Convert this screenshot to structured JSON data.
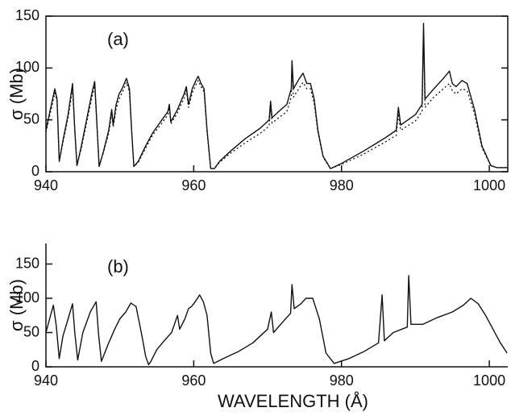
{
  "chart_data": [
    {
      "type": "line",
      "panel_label": "(a)",
      "ylabel": "σ (Mb)",
      "xlim": [
        940,
        1002.5
      ],
      "xticks": [
        940,
        960,
        980,
        1000
      ],
      "ylim": [
        0,
        150
      ],
      "yticks": [
        0,
        50,
        100,
        150
      ],
      "box": true,
      "x": [
        940.0,
        940.6,
        941.2,
        941.5,
        941.8,
        942.3,
        943.0,
        943.6,
        943.9,
        944.2,
        944.8,
        945.5,
        946.2,
        946.6,
        946.9,
        947.2,
        947.8,
        948.5,
        948.9,
        949.1,
        949.5,
        949.9,
        950.3,
        950.9,
        951.3,
        951.6,
        951.9,
        952.5,
        953.5,
        954.5,
        955.5,
        956.5,
        956.7,
        956.9,
        957.8,
        958.7,
        959.0,
        959.3,
        959.8,
        960.3,
        960.6,
        961.0,
        961.4,
        961.8,
        962.3,
        962.8,
        963.5,
        965,
        967,
        969,
        970.2,
        970.4,
        970.6,
        971.5,
        972.6,
        973.2,
        973.3,
        973.5,
        974.3,
        974.8,
        975.3,
        975.8,
        976.3,
        976.8,
        977.5,
        978.5,
        980,
        983,
        986,
        987.4,
        987.7,
        988,
        990,
        990.9,
        991.1,
        991.3,
        992.5,
        993.8,
        994.6,
        995.0,
        995.5,
        996.3,
        997,
        998,
        999,
        1000.2,
        1001,
        1002.5
      ],
      "series": [
        {
          "color": "#111111",
          "style": "solid",
          "values": [
            40,
            60,
            80,
            70,
            10,
            30,
            55,
            85,
            40,
            6,
            25,
            50,
            75,
            87,
            45,
            5,
            20,
            40,
            60,
            45,
            65,
            75,
            80,
            90,
            80,
            40,
            5,
            10,
            25,
            38,
            48,
            58,
            65,
            48,
            60,
            75,
            82,
            65,
            80,
            88,
            92,
            85,
            80,
            40,
            3,
            3,
            10,
            20,
            32,
            42,
            50,
            68,
            52,
            58,
            65,
            80,
            107,
            80,
            90,
            95,
            85,
            85,
            70,
            40,
            15,
            3,
            8,
            20,
            33,
            40,
            62,
            45,
            55,
            65,
            143,
            70,
            80,
            90,
            97,
            85,
            82,
            88,
            85,
            60,
            25,
            6,
            4,
            4
          ]
        },
        {
          "color": "#111111",
          "style": "dotted",
          "values": [
            38,
            57,
            76,
            68,
            10,
            28,
            52,
            80,
            40,
            6,
            23,
            47,
            71,
            83,
            44,
            5,
            19,
            37,
            56,
            43,
            61,
            70,
            76,
            86,
            77,
            39,
            5,
            9,
            23,
            36,
            45,
            55,
            62,
            46,
            57,
            71,
            78,
            62,
            76,
            84,
            88,
            82,
            77,
            39,
            3,
            3,
            9,
            18,
            28,
            37,
            44,
            62,
            47,
            52,
            58,
            72,
            98,
            72,
            81,
            86,
            80,
            80,
            66,
            38,
            14,
            3,
            7,
            17,
            29,
            35,
            56,
            40,
            49,
            58,
            130,
            62,
            72,
            80,
            85,
            78,
            75,
            80,
            78,
            56,
            23,
            6,
            4,
            4
          ]
        }
      ]
    },
    {
      "type": "line",
      "panel_label": "(b)",
      "ylabel": "σ (Mb)",
      "xlabel": "WAVELENGTH (Å)",
      "xlim": [
        940,
        1002.5
      ],
      "xticks": [
        940,
        960,
        980,
        1000
      ],
      "ylim": [
        0,
        180
      ],
      "yticks": [
        0,
        50,
        100,
        150
      ],
      "box": false,
      "x": [
        940.0,
        940.5,
        941.0,
        941.4,
        941.8,
        942.3,
        943.0,
        943.6,
        943.9,
        944.3,
        945.0,
        946.0,
        946.8,
        947.1,
        947.5,
        948.5,
        949.3,
        950.0,
        950.8,
        951.5,
        952.2,
        952.9,
        953.5,
        953.9,
        954.2,
        955,
        956,
        957.0,
        957.8,
        958.1,
        958.8,
        959.3,
        959.7,
        960.2,
        960.8,
        961.3,
        961.8,
        962.3,
        962.7,
        964,
        966,
        968,
        970,
        970.5,
        970.8,
        972,
        973.1,
        973.3,
        973.6,
        974.5,
        975.2,
        976.1,
        977,
        977.9,
        979,
        981,
        983,
        985,
        985.5,
        985.8,
        987,
        988.9,
        989.1,
        989.4,
        991,
        993,
        995,
        996.5,
        997.5,
        998.5,
        999.5,
        1000.5,
        1001.5,
        1002.4
      ],
      "series": [
        {
          "color": "#111111",
          "style": "solid",
          "values": [
            50,
            70,
            90,
            60,
            12,
            45,
            70,
            92,
            50,
            10,
            50,
            80,
            95,
            50,
            8,
            35,
            55,
            70,
            80,
            93,
            88,
            50,
            15,
            3,
            8,
            25,
            38,
            50,
            75,
            55,
            70,
            85,
            88,
            95,
            105,
            95,
            75,
            20,
            5,
            12,
            22,
            35,
            55,
            80,
            50,
            65,
            78,
            120,
            85,
            92,
            100,
            100,
            70,
            20,
            5,
            12,
            22,
            35,
            105,
            38,
            50,
            58,
            133,
            62,
            62,
            72,
            80,
            90,
            100,
            92,
            75,
            55,
            35,
            20
          ]
        }
      ]
    }
  ]
}
